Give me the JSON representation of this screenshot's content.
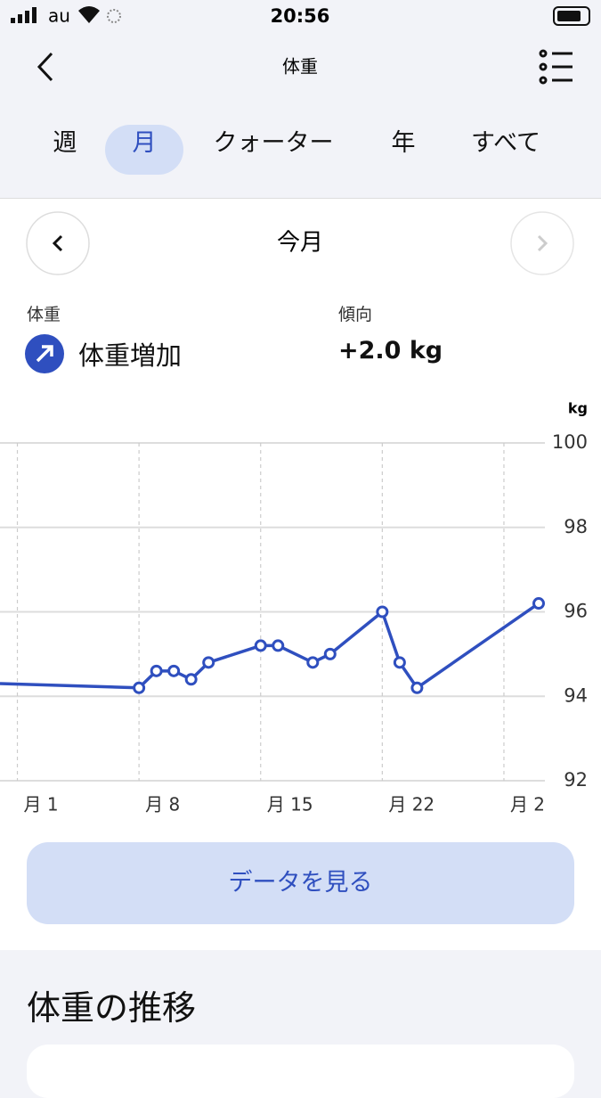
{
  "status_bar": {
    "carrier": "au",
    "time": "20:56"
  },
  "header": {
    "title": "体重"
  },
  "tabs": [
    "週",
    "月",
    "クォーター",
    "年",
    "すべて"
  ],
  "period": {
    "label": "今月"
  },
  "summary": {
    "label": "体重",
    "value": "体重増加",
    "trend_label": "傾向",
    "trend_value": "+2.0 kg"
  },
  "chart_data": {
    "type": "line",
    "y_unit": "kg",
    "x": [
      0,
      8,
      9,
      10,
      11,
      12,
      15,
      16,
      18,
      19,
      22,
      23,
      24,
      31
    ],
    "series": [
      {
        "name": "体重",
        "color": "#2f4fbf",
        "values": [
          94.3,
          94.2,
          94.6,
          94.6,
          94.4,
          94.8,
          95.2,
          95.2,
          94.8,
          95.0,
          96.0,
          94.8,
          94.2,
          96.2
        ]
      }
    ],
    "xlim": [
      0,
      31
    ],
    "xticks": [
      {
        "value": 1,
        "label": "月 1"
      },
      {
        "value": 8,
        "label": "月 8"
      },
      {
        "value": 15,
        "label": "月 15"
      },
      {
        "value": 22,
        "label": "月 22"
      },
      {
        "value": 29,
        "label": "月 2"
      }
    ],
    "ylim": [
      92,
      100
    ],
    "yticks": [
      92,
      94,
      96,
      98,
      100
    ],
    "grid": true
  },
  "button": {
    "label": "データを見る"
  },
  "section": {
    "title": "体重の推移"
  }
}
